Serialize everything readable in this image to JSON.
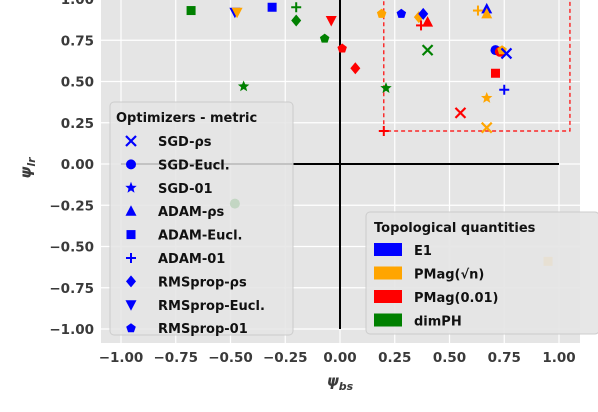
{
  "chart_data": {
    "type": "scatter",
    "xlabel": "ψ_bs",
    "ylabel": "ψ_lr",
    "xlim": [
      -1.1,
      1.1
    ],
    "ylim": [
      -1.1,
      1.0
    ],
    "x_ticks": [
      "−1.00",
      "−0.75",
      "−0.50",
      "−0.25",
      "0.00",
      "0.25",
      "0.50",
      "0.75",
      "1.00"
    ],
    "y_ticks": [
      "1.00",
      "0.75",
      "0.50",
      "0.25",
      "0.00",
      "−0.25",
      "−0.50",
      "−0.75",
      "−1.00"
    ],
    "grid": true,
    "optimizer_legend": {
      "title": "Optimizers - metric",
      "entries": [
        {
          "label": "SGD-ρs",
          "marker": "x"
        },
        {
          "label": "SGD-Eucl.",
          "marker": "circle"
        },
        {
          "label": "SGD-01",
          "marker": "star"
        },
        {
          "label": "ADAM-ρs",
          "marker": "triangle-up"
        },
        {
          "label": "ADAM-Eucl.",
          "marker": "square"
        },
        {
          "label": "ADAM-01",
          "marker": "plus"
        },
        {
          "label": "RMSprop-ρs",
          "marker": "diamond"
        },
        {
          "label": "RMSprop-Eucl.",
          "marker": "triangle-down"
        },
        {
          "label": "RMSprop-01",
          "marker": "pentagon"
        }
      ]
    },
    "quantity_legend": {
      "title": "Topological quantities",
      "entries": [
        {
          "label": "E1",
          "color": "#0000ff"
        },
        {
          "label": "PMag(√n)",
          "color": "#ffa500"
        },
        {
          "label": "PMag(0.01)",
          "color": "#ff0000"
        },
        {
          "label": "dimPH",
          "color": "#008000"
        }
      ]
    },
    "points": [
      {
        "x": -0.68,
        "y": 0.93,
        "marker": "square",
        "color": "#008000"
      },
      {
        "x": -0.48,
        "y": 0.92,
        "marker": "triangle-down",
        "color": "#0000ff"
      },
      {
        "x": -0.47,
        "y": 0.92,
        "marker": "triangle-down",
        "color": "#ffa500"
      },
      {
        "x": -0.31,
        "y": 0.95,
        "marker": "square",
        "color": "#0000ff"
      },
      {
        "x": -0.2,
        "y": 0.95,
        "marker": "plus",
        "color": "#008000"
      },
      {
        "x": -0.2,
        "y": 0.87,
        "marker": "diamond",
        "color": "#008000"
      },
      {
        "x": -0.04,
        "y": 0.87,
        "marker": "triangle-down",
        "color": "#ff0000"
      },
      {
        "x": -0.07,
        "y": 0.76,
        "marker": "pentagon",
        "color": "#008000"
      },
      {
        "x": 0.01,
        "y": 0.7,
        "marker": "pentagon",
        "color": "#ff0000"
      },
      {
        "x": 0.07,
        "y": 0.58,
        "marker": "diamond",
        "color": "#ff0000"
      },
      {
        "x": -0.44,
        "y": 0.47,
        "marker": "star",
        "color": "#008000"
      },
      {
        "x": 0.19,
        "y": 0.91,
        "marker": "pentagon",
        "color": "#ffa500"
      },
      {
        "x": 0.28,
        "y": 0.91,
        "marker": "pentagon",
        "color": "#0000ff"
      },
      {
        "x": 0.36,
        "y": 0.89,
        "marker": "diamond",
        "color": "#ffa500"
      },
      {
        "x": 0.38,
        "y": 0.91,
        "marker": "diamond",
        "color": "#0000ff"
      },
      {
        "x": 0.37,
        "y": 0.84,
        "marker": "plus",
        "color": "#ff0000"
      },
      {
        "x": 0.4,
        "y": 0.86,
        "marker": "triangle-up",
        "color": "#ff0000"
      },
      {
        "x": 0.4,
        "y": 0.69,
        "marker": "x",
        "color": "#008000"
      },
      {
        "x": 0.21,
        "y": 0.46,
        "marker": "star",
        "color": "#008000"
      },
      {
        "x": 0.2,
        "y": 0.2,
        "marker": "plus",
        "color": "#ff0000"
      },
      {
        "x": 0.55,
        "y": 0.31,
        "marker": "x",
        "color": "#ff0000"
      },
      {
        "x": 0.63,
        "y": 0.93,
        "marker": "plus",
        "color": "#ffa500"
      },
      {
        "x": 0.67,
        "y": 0.94,
        "marker": "triangle-up",
        "color": "#0000ff"
      },
      {
        "x": 0.67,
        "y": 0.91,
        "marker": "triangle-up",
        "color": "#ffa500"
      },
      {
        "x": 0.71,
        "y": 0.69,
        "marker": "circle",
        "color": "#0000ff"
      },
      {
        "x": 0.73,
        "y": 0.68,
        "marker": "circle",
        "color": "#ff0000"
      },
      {
        "x": 0.74,
        "y": 0.69,
        "marker": "pentagon",
        "color": "#ffa500"
      },
      {
        "x": 0.76,
        "y": 0.67,
        "marker": "x",
        "color": "#0000ff"
      },
      {
        "x": 0.71,
        "y": 0.55,
        "marker": "square",
        "color": "#ff0000"
      },
      {
        "x": 0.75,
        "y": 0.45,
        "marker": "plus",
        "color": "#0000ff"
      },
      {
        "x": 0.67,
        "y": 0.4,
        "marker": "star",
        "color": "#ffa500"
      },
      {
        "x": 0.67,
        "y": 0.22,
        "marker": "x",
        "color": "#ffa500"
      },
      {
        "x": -0.48,
        "y": -0.24,
        "marker": "circle",
        "color": "#008000"
      },
      {
        "x": 0.95,
        "y": -0.59,
        "marker": "square",
        "color": "#ffa500"
      }
    ],
    "highlight_box": {
      "x0": 0.2,
      "x1": 1.05,
      "y0": 0.2,
      "y1": 1.0,
      "color": "#ff0000",
      "style": "dashed"
    }
  }
}
